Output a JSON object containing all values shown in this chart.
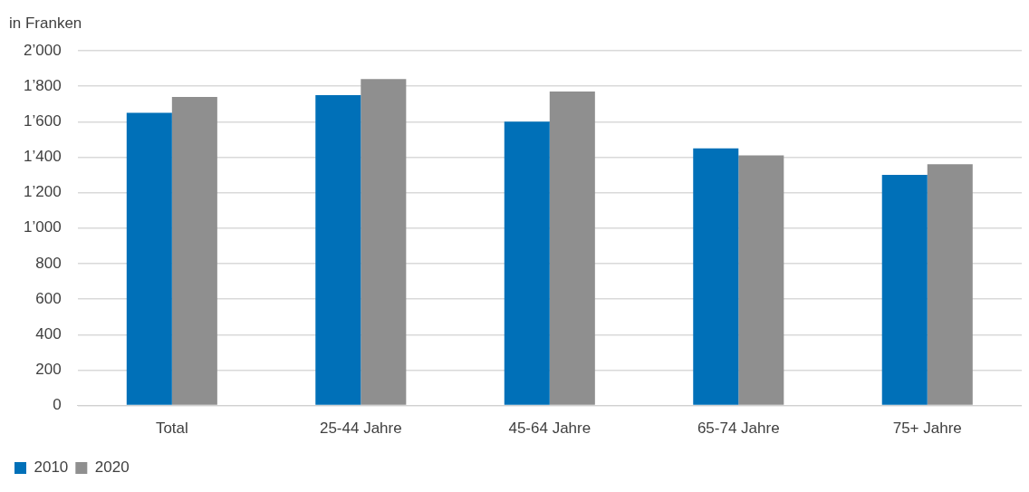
{
  "chart_data": {
    "type": "bar",
    "ylabel": "in Franken",
    "categories": [
      "Total",
      "25-44 Jahre",
      "45-64 Jahre",
      "65-74 Jahre",
      "75+ Jahre"
    ],
    "series": [
      {
        "name": "2010",
        "color": "#0070b8",
        "values": [
          1650,
          1750,
          1600,
          1450,
          1300
        ]
      },
      {
        "name": "2020",
        "color": "#8f8f8f",
        "values": [
          1740,
          1840,
          1770,
          1410,
          1360
        ]
      }
    ],
    "ylim": [
      0,
      2000
    ],
    "yticks": [
      0,
      200,
      400,
      600,
      800,
      {
        "value": 1000,
        "label": "1’000"
      },
      {
        "value": 1200,
        "label": "1’200"
      },
      {
        "value": 1400,
        "label": "1’400"
      },
      {
        "value": 1600,
        "label": "1’600"
      },
      {
        "value": 1800,
        "label": "1’800"
      },
      {
        "value": 2000,
        "label": "2’000"
      }
    ],
    "grid": "y",
    "legend": "bottom left"
  }
}
